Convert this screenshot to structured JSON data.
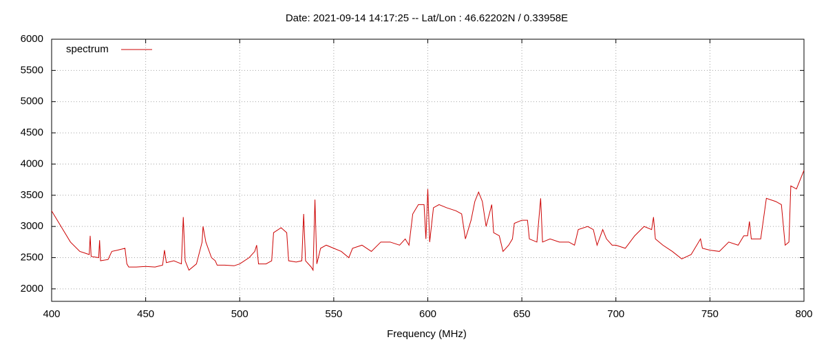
{
  "chart_data": {
    "type": "line",
    "title": "Date: 2021-09-14 14:17:25  --  Lat/Lon : 46.62202N / 0.33958E",
    "x_label": "Frequency (MHz)",
    "xlim": [
      400,
      800
    ],
    "xticks": [
      400,
      450,
      500,
      550,
      600,
      650,
      700,
      750,
      800
    ],
    "ylim": [
      1800,
      6000
    ],
    "yticks": [
      2000,
      2500,
      3000,
      3500,
      4000,
      4500,
      5000,
      5500,
      6000
    ],
    "grid": true,
    "legend": "top-left",
    "x": [
      400,
      405,
      410,
      415,
      418,
      420,
      420.5,
      421,
      425,
      425.5,
      426,
      430,
      432,
      435,
      439,
      440,
      441,
      445,
      450,
      455,
      459,
      460,
      461,
      465,
      469,
      470,
      471,
      473,
      477,
      480,
      480.5,
      482,
      485,
      487,
      488,
      492,
      497,
      500,
      505,
      508,
      509,
      510,
      514,
      517,
      518,
      522,
      525,
      526,
      530,
      533,
      534,
      535,
      538,
      539,
      540,
      541,
      543,
      546,
      550,
      554,
      558,
      560,
      565,
      570,
      575,
      580,
      585,
      588,
      590,
      592,
      595,
      598,
      599,
      600,
      601,
      603,
      606,
      610,
      615,
      618,
      620,
      623,
      625,
      627,
      629,
      631,
      634,
      635,
      638,
      640,
      643,
      645,
      646,
      650,
      653,
      654,
      658,
      660,
      661,
      665,
      670,
      675,
      678,
      680,
      685,
      688,
      690,
      693,
      695,
      698,
      700,
      705,
      710,
      715,
      719,
      720,
      721,
      725,
      730,
      735,
      740,
      745,
      746,
      750,
      755,
      760,
      765,
      768,
      770,
      771,
      772,
      777,
      780,
      785,
      788,
      790,
      792,
      793,
      796,
      800
    ],
    "series": [
      {
        "name": "spectrum",
        "color": "#cc0000",
        "values": [
          3250,
          3000,
          2750,
          2600,
          2570,
          2550,
          2850,
          2520,
          2500,
          2780,
          2450,
          2470,
          2600,
          2620,
          2650,
          2400,
          2350,
          2350,
          2360,
          2350,
          2380,
          2620,
          2420,
          2450,
          2400,
          3150,
          2450,
          2300,
          2400,
          2750,
          3000,
          2750,
          2500,
          2450,
          2380,
          2380,
          2370,
          2400,
          2500,
          2600,
          2700,
          2400,
          2400,
          2450,
          2900,
          2980,
          2900,
          2450,
          2430,
          2450,
          3200,
          2450,
          2350,
          2300,
          3430,
          2400,
          2650,
          2700,
          2650,
          2600,
          2500,
          2650,
          2700,
          2600,
          2750,
          2750,
          2700,
          2800,
          2700,
          3200,
          3350,
          3350,
          2800,
          3600,
          2750,
          3300,
          3350,
          3300,
          3250,
          3200,
          2800,
          3100,
          3400,
          3550,
          3400,
          3000,
          3350,
          2900,
          2850,
          2600,
          2700,
          2800,
          3050,
          3100,
          3100,
          2800,
          2750,
          3450,
          2750,
          2800,
          2750,
          2750,
          2700,
          2950,
          3000,
          2950,
          2700,
          2950,
          2800,
          2700,
          2700,
          2650,
          2850,
          3000,
          2950,
          3150,
          2800,
          2700,
          2600,
          2480,
          2550,
          2800,
          2650,
          2620,
          2600,
          2750,
          2700,
          2850,
          2850,
          3080,
          2800,
          2800,
          3450,
          3400,
          3350,
          2700,
          2750,
          3650,
          3600,
          3900
        ]
      }
    ]
  }
}
